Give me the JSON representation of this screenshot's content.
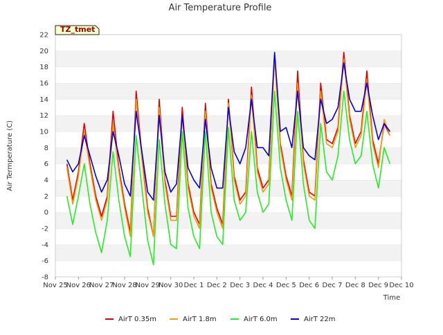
{
  "chart_data": {
    "type": "line",
    "title": "Air Temperature Profile",
    "xlabel": "Time",
    "ylabel": "Air Termperature (C)",
    "site_label": "TZ_tmet",
    "ylim": [
      -8,
      22
    ],
    "yticks": [
      -8,
      -6,
      -4,
      -2,
      0,
      2,
      4,
      6,
      8,
      10,
      12,
      14,
      16,
      18,
      20,
      22
    ],
    "xlim": [
      "Nov 25",
      "Dec 10"
    ],
    "xticks": [
      "Nov 25",
      "Nov 26",
      "Nov 27",
      "Nov 28",
      "Nov 29",
      "Nov 30",
      "Dec 1",
      "Dec 2",
      "Dec 3",
      "Dec 4",
      "Dec 5",
      "Dec 6",
      "Dec 7",
      "Dec 8",
      "Dec 9",
      "Dec 10"
    ],
    "grid": "horizontal bands",
    "legend_position": "bottom",
    "x": [
      "Nov 25 12:00",
      "Nov 25 18:00",
      "Nov 26 00:00",
      "Nov 26 06:00",
      "Nov 26 12:00",
      "Nov 26 18:00",
      "Nov 27 00:00",
      "Nov 27 06:00",
      "Nov 27 12:00",
      "Nov 27 18:00",
      "Nov 28 00:00",
      "Nov 28 06:00",
      "Nov 28 12:00",
      "Nov 28 18:00",
      "Nov 29 00:00",
      "Nov 29 06:00",
      "Nov 29 12:00",
      "Nov 29 18:00",
      "Nov 30 00:00",
      "Nov 30 06:00",
      "Nov 30 12:00",
      "Nov 30 18:00",
      "Dec 1 00:00",
      "Dec 1 06:00",
      "Dec 1 12:00",
      "Dec 1 18:00",
      "Dec 2 00:00",
      "Dec 2 06:00",
      "Dec 2 12:00",
      "Dec 2 18:00",
      "Dec 3 00:00",
      "Dec 3 06:00",
      "Dec 3 12:00",
      "Dec 3 18:00",
      "Dec 4 00:00",
      "Dec 4 06:00",
      "Dec 4 12:00",
      "Dec 4 18:00",
      "Dec 5 00:00",
      "Dec 5 06:00",
      "Dec 5 12:00",
      "Dec 5 18:00",
      "Dec 6 00:00",
      "Dec 6 06:00",
      "Dec 6 12:00",
      "Dec 6 18:00",
      "Dec 7 00:00",
      "Dec 7 06:00",
      "Dec 7 12:00",
      "Dec 7 18:00",
      "Dec 8 00:00",
      "Dec 8 06:00",
      "Dec 8 12:00",
      "Dec 8 18:00",
      "Dec 9 00:00",
      "Dec 9 06:00",
      "Dec 9 12:00"
    ],
    "series": [
      {
        "name": "AirT 0.35m",
        "color": "#dd0000",
        "values": [
          6.0,
          1.5,
          5.0,
          11.0,
          6.0,
          2.0,
          -0.5,
          2.0,
          12.5,
          5.5,
          1.0,
          -2.5,
          15.0,
          7.0,
          0.5,
          -3.0,
          14.0,
          4.0,
          -0.5,
          -0.5,
          13.0,
          3.5,
          0.0,
          -1.5,
          13.5,
          3.5,
          0.5,
          -1.5,
          14.0,
          4.5,
          1.5,
          2.5,
          15.5,
          5.5,
          3.0,
          4.0,
          19.5,
          8.5,
          4.5,
          2.0,
          17.5,
          6.5,
          2.5,
          2.0,
          16.0,
          9.0,
          8.5,
          10.5,
          19.8,
          12.0,
          8.5,
          10.0,
          17.5,
          9.0,
          6.0,
          11.0,
          9.5
        ]
      },
      {
        "name": "AirT 1.8m",
        "color": "#ff9900",
        "values": [
          5.5,
          1.0,
          4.5,
          10.0,
          5.5,
          1.5,
          -1.0,
          1.5,
          11.0,
          5.0,
          0.5,
          -3.0,
          14.0,
          6.5,
          0.0,
          -3.0,
          13.0,
          3.5,
          -1.0,
          -1.0,
          12.0,
          3.0,
          -0.5,
          -2.0,
          12.5,
          3.0,
          0.0,
          -2.0,
          13.5,
          4.0,
          1.0,
          2.0,
          14.5,
          5.0,
          2.5,
          3.5,
          19.0,
          8.0,
          4.0,
          1.5,
          16.0,
          6.0,
          2.0,
          1.5,
          15.0,
          8.5,
          8.0,
          10.0,
          19.0,
          11.5,
          8.0,
          9.5,
          16.5,
          8.5,
          5.5,
          11.5,
          9.5
        ]
      },
      {
        "name": "AirT 6.0m",
        "color": "#22ee22",
        "values": [
          2.0,
          -1.5,
          2.0,
          6.0,
          1.0,
          -2.5,
          -5.0,
          -1.0,
          7.5,
          1.5,
          -3.0,
          -5.5,
          9.5,
          3.0,
          -3.5,
          -6.5,
          9.0,
          1.0,
          -4.0,
          -4.5,
          10.0,
          0.5,
          -3.0,
          -4.5,
          10.0,
          0.0,
          -3.0,
          -4.0,
          10.5,
          1.5,
          -1.0,
          0.0,
          10.0,
          2.5,
          0.0,
          1.0,
          15.0,
          5.5,
          1.5,
          -1.0,
          12.5,
          3.5,
          -1.0,
          -2.0,
          11.0,
          5.0,
          4.0,
          7.0,
          15.0,
          9.0,
          6.0,
          7.0,
          12.5,
          6.0,
          3.0,
          8.0,
          6.0
        ]
      },
      {
        "name": "AirT 22m",
        "color": "#0000dd",
        "values": [
          6.5,
          5.0,
          6.0,
          9.5,
          7.0,
          4.5,
          2.5,
          4.0,
          10.0,
          7.0,
          3.5,
          2.0,
          12.5,
          7.5,
          2.5,
          1.5,
          12.0,
          5.0,
          2.5,
          3.5,
          12.0,
          5.5,
          4.0,
          3.0,
          11.5,
          5.5,
          3.0,
          3.0,
          13.0,
          7.5,
          6.0,
          8.0,
          14.0,
          8.0,
          8.0,
          7.0,
          19.8,
          10.0,
          10.5,
          8.0,
          15.0,
          8.0,
          7.0,
          6.5,
          14.0,
          11.0,
          11.5,
          13.0,
          18.5,
          14.0,
          12.5,
          12.5,
          16.0,
          12.0,
          9.0,
          11.0,
          10.0
        ]
      }
    ]
  }
}
